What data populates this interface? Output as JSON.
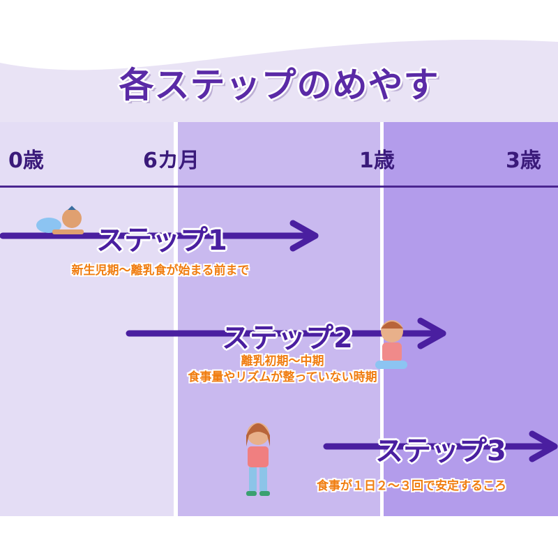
{
  "title": "各ステップのめやす",
  "ages": [
    "0歳",
    "6カ月",
    "1歳",
    "3歳"
  ],
  "steps": [
    {
      "label": "ステップ1",
      "desc": [
        "新生児期～離乳食が始まる前まで"
      ]
    },
    {
      "label": "ステップ2",
      "desc": [
        "離乳初期～中期",
        "食事量やリズムが整っていない時期"
      ]
    },
    {
      "label": "ステップ3",
      "desc": [
        "食事が１日２～３回で安定するころ"
      ]
    }
  ],
  "colors": {
    "accent": "#4a1fa0",
    "desc": "#f07d10",
    "col1": "#e4ddf5",
    "col2": "#c9b9ef",
    "col3": "#b39ceb"
  }
}
